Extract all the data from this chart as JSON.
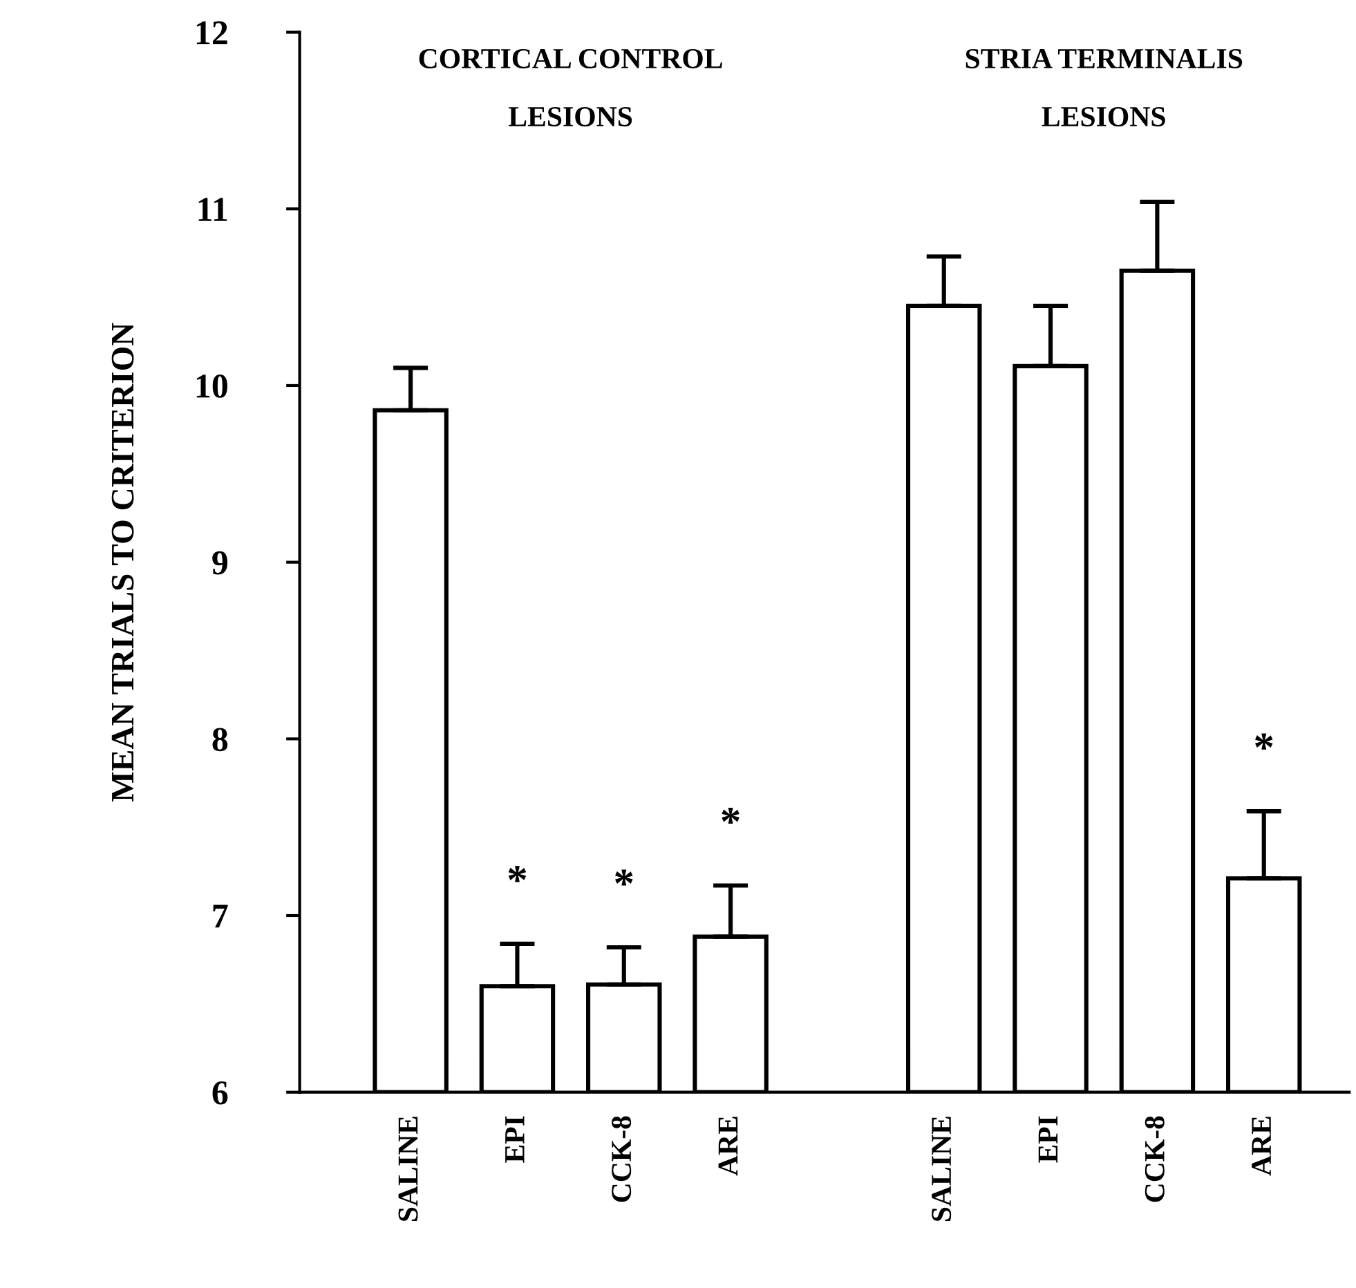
{
  "chart_data": {
    "type": "bar",
    "ylabel": "MEAN TRIALS TO CRITERION",
    "annotations": [
      "CORTICAL CONTROL\nLESIONS",
      "STRIA TERMINALIS\nLESIONS"
    ],
    "categories": [
      "SALINE",
      "EPI",
      "CCK-8",
      "ARE",
      null,
      "SALINE",
      "EPI",
      "CCK-8",
      "ARE"
    ],
    "values": [
      9.86,
      6.6,
      6.61,
      6.88,
      null,
      10.45,
      10.11,
      10.65,
      7.21
    ],
    "errors": [
      [
        9.86,
        10.1
      ],
      [
        6.6,
        6.84
      ],
      [
        6.61,
        6.82
      ],
      [
        6.88,
        7.17
      ],
      null,
      [
        10.45,
        10.73
      ],
      [
        10.11,
        10.45
      ],
      [
        10.65,
        11.04
      ],
      [
        7.21,
        7.59
      ]
    ],
    "value_labels": [
      null,
      "*",
      "*",
      "*",
      null,
      null,
      null,
      null,
      "*"
    ],
    "color": "#ffffff",
    "ylim": [
      6,
      12
    ],
    "yticks": [
      6,
      7,
      8,
      9,
      10,
      11,
      12
    ],
    "grid": false
  }
}
